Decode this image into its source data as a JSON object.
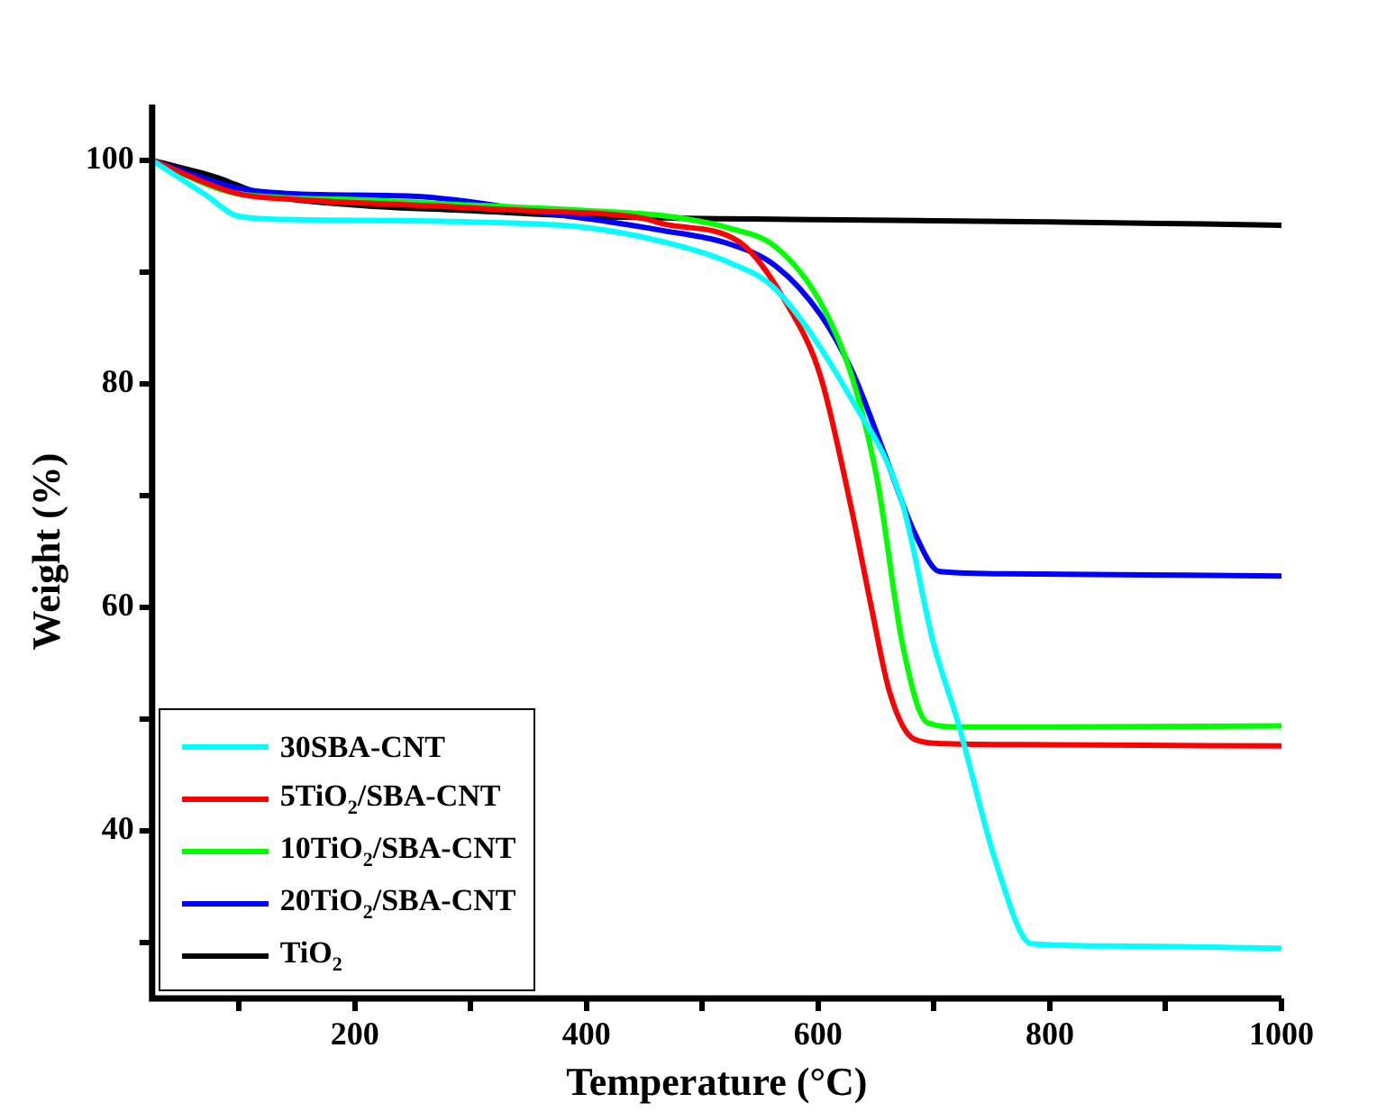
{
  "chart_data": {
    "type": "line",
    "xlabel": "Temperature (°C)",
    "ylabel": "Weight (%)",
    "xlim": [
      25,
      1000
    ],
    "ylim": [
      25,
      105
    ],
    "xticks": [
      {
        "value": 100,
        "label": null
      },
      200,
      {
        "value": 300,
        "label": null
      },
      400,
      {
        "value": 500,
        "label": null
      },
      600,
      {
        "value": 700,
        "label": null
      },
      800,
      {
        "value": 900,
        "label": null
      },
      1000
    ],
    "yticks": [
      {
        "value": 30,
        "label": null
      },
      40,
      {
        "value": 50,
        "label": null
      },
      60,
      {
        "value": 70,
        "label": null
      },
      80,
      {
        "value": 90,
        "label": null
      },
      100
    ],
    "grid": false,
    "legend": "bottom left",
    "marker": "none",
    "line_style": "solid",
    "series": [
      {
        "name": "30SBA-CNT",
        "color": "#00ffff",
        "x": [
          25,
          70,
          100,
          150,
          300,
          400,
          467,
          520,
          564,
          629,
          673,
          699,
          721,
          754,
          784,
          850,
          1000
        ],
        "values": [
          100,
          97,
          95,
          94.7,
          94.5,
          94,
          92.7,
          91,
          88.4,
          78.6,
          69.2,
          57,
          49.6,
          37,
          29.9,
          29.7,
          29.5
        ]
      },
      {
        "name": "5TiO$_{2}$/SBA-CNT",
        "color": "#ff0000",
        "x": [
          25,
          100,
          150,
          250,
          350,
          450,
          467,
          532,
          575,
          602,
          629,
          645,
          662,
          683,
          710,
          800,
          1000
        ],
        "values": [
          100,
          97,
          96.5,
          96,
          95.5,
          94.8,
          94.3,
          92.7,
          86.8,
          80.7,
          68.7,
          60.5,
          52.3,
          48.2,
          47.8,
          47.7,
          47.6
        ]
      },
      {
        "name": "10TiO$_{2}$/SBA-CNT",
        "color": "#00ff00",
        "x": [
          25,
          100,
          200,
          300,
          400,
          470,
          521,
          564,
          602,
          629,
          651,
          673,
          694,
          721,
          800,
          1000
        ],
        "values": [
          100,
          97,
          96.5,
          96,
          95.5,
          95,
          94,
          92.2,
          87.3,
          80.7,
          71.4,
          56.6,
          49.7,
          49.3,
          49.3,
          49.4
        ]
      },
      {
        "name": "20TiO$_{2}$/SBA-CNT",
        "color": "#0000ff",
        "x": [
          25,
          100,
          150,
          250,
          300,
          350,
          420,
          467,
          521,
          564,
          602,
          629,
          656,
          684,
          705,
          765,
          1000
        ],
        "values": [
          100,
          97.5,
          97,
          96.8,
          96.3,
          95.5,
          94.5,
          93.7,
          92.6,
          90.5,
          86.2,
          81.2,
          74.1,
          66.5,
          63.2,
          63,
          62.8
        ]
      },
      {
        "name": "TiO$_{2}$",
        "color": "#000000",
        "x": [
          25,
          80,
          120,
          200,
          300,
          400,
          600,
          800,
          1000
        ],
        "values": [
          100,
          98.5,
          97,
          96,
          95.5,
          95,
          94.7,
          94.5,
          94.2
        ]
      }
    ]
  }
}
